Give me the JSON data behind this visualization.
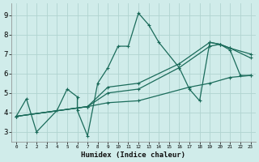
{
  "xlabel": "Humidex (Indice chaleur)",
  "bg_color": "#d0ecea",
  "grid_color": "#b0d4d0",
  "line_color": "#1a6b5a",
  "xlim": [
    -0.5,
    23.5
  ],
  "ylim": [
    2.5,
    9.6
  ],
  "xticks": [
    0,
    1,
    2,
    3,
    4,
    5,
    6,
    7,
    8,
    9,
    10,
    11,
    12,
    13,
    14,
    15,
    16,
    17,
    18,
    19,
    20,
    21,
    22,
    23
  ],
  "yticks": [
    3,
    4,
    5,
    6,
    7,
    8,
    9
  ],
  "line1_x": [
    0,
    1,
    2,
    4,
    5,
    6,
    6,
    7,
    8,
    9,
    10,
    11,
    12,
    13,
    14,
    16,
    17,
    18,
    19,
    20,
    21,
    22,
    23
  ],
  "line1_y": [
    3.8,
    4.7,
    3.0,
    4.1,
    5.2,
    4.8,
    4.1,
    2.8,
    5.5,
    6.3,
    7.4,
    7.4,
    9.1,
    8.5,
    7.6,
    6.3,
    5.2,
    4.6,
    7.6,
    7.5,
    7.2,
    5.9,
    5.9
  ],
  "line2_x": [
    0,
    7,
    9,
    12,
    17,
    19,
    21,
    23
  ],
  "line2_y": [
    3.8,
    4.3,
    4.5,
    4.6,
    5.3,
    5.5,
    5.8,
    5.9
  ],
  "line3_x": [
    0,
    7,
    9,
    12,
    16,
    19,
    20,
    21,
    23
  ],
  "line3_y": [
    3.8,
    4.3,
    5.0,
    5.2,
    6.3,
    7.4,
    7.5,
    7.3,
    7.0
  ],
  "line4_x": [
    0,
    7,
    9,
    12,
    16,
    19,
    20,
    21,
    23
  ],
  "line4_y": [
    3.8,
    4.3,
    5.3,
    5.5,
    6.5,
    7.6,
    7.5,
    7.3,
    6.8
  ]
}
